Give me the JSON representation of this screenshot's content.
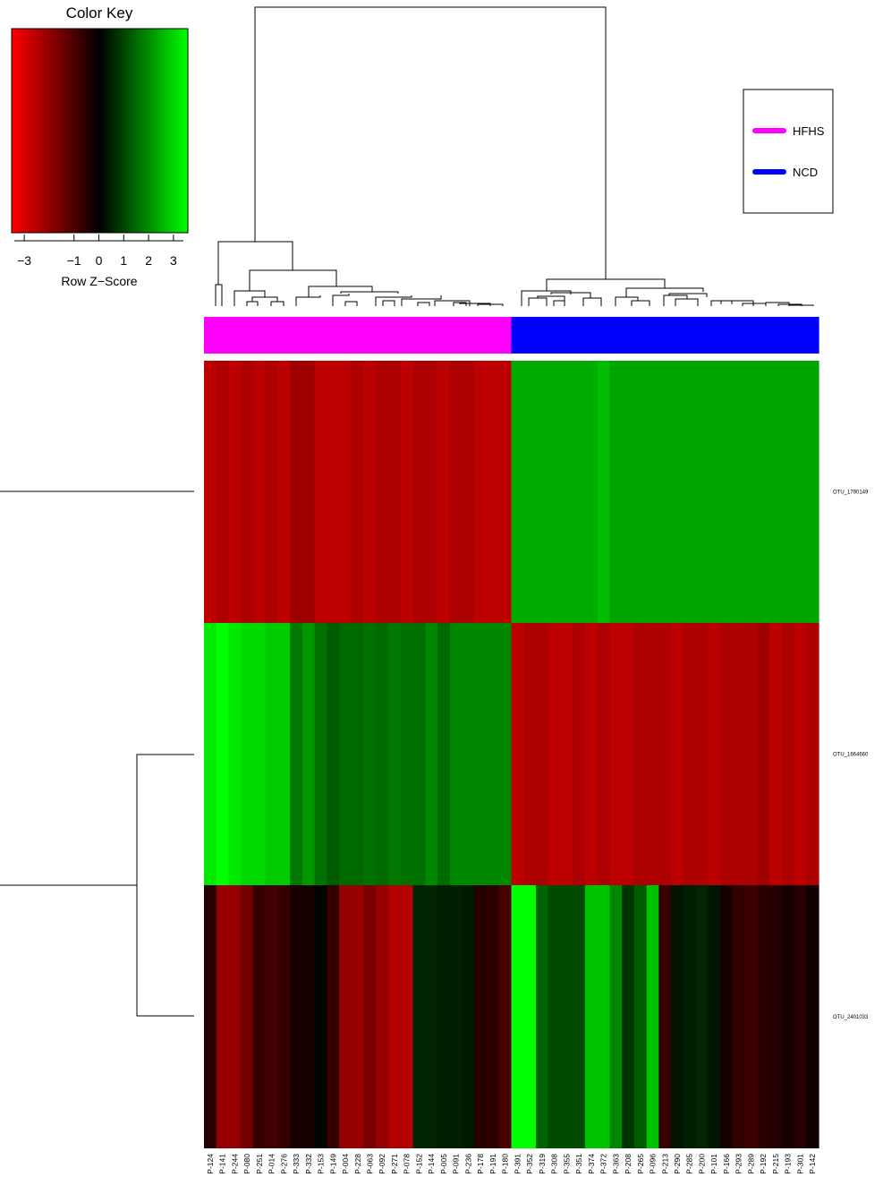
{
  "chart_data": {
    "type": "heatmap",
    "color_key": {
      "title": "Color Key",
      "xlabel": "Row Z−Score",
      "ticks": [
        "−3",
        "−1",
        "0",
        "1",
        "2",
        "3"
      ],
      "range": [
        -3.4,
        3.4
      ],
      "low_color": "#ff0000",
      "mid_color": "#000000",
      "high_color": "#00ff00"
    },
    "legend": {
      "position": "top-right",
      "entries": [
        {
          "label": "HFHS",
          "color": "#ff00ff"
        },
        {
          "label": "NCD",
          "color": "#0000ff"
        }
      ]
    },
    "columns": [
      "P-124",
      "P-141",
      "P-244",
      "P-080",
      "P-251",
      "P-014",
      "P-276",
      "P-333",
      "P-332",
      "P-153",
      "P-149",
      "P-004",
      "P-228",
      "P-063",
      "P-092",
      "P-271",
      "P-078",
      "P-152",
      "P-144",
      "P-005",
      "P-091",
      "P-236",
      "P-178",
      "P-191",
      "P-180",
      "P-391",
      "P-352",
      "P-319",
      "P-308",
      "P-355",
      "P-351",
      "P-374",
      "P-372",
      "P-363",
      "P-208",
      "P-265",
      "P-096",
      "P-213",
      "P-290",
      "P-285",
      "P-200",
      "P-101",
      "P-166",
      "P-293",
      "P-289",
      "P-192",
      "P-215",
      "P-193",
      "P-301",
      "P-142"
    ],
    "column_groups": [
      "HFHS",
      "HFHS",
      "HFHS",
      "HFHS",
      "HFHS",
      "HFHS",
      "HFHS",
      "HFHS",
      "HFHS",
      "HFHS",
      "HFHS",
      "HFHS",
      "HFHS",
      "HFHS",
      "HFHS",
      "HFHS",
      "HFHS",
      "HFHS",
      "HFHS",
      "HFHS",
      "HFHS",
      "HFHS",
      "HFHS",
      "HFHS",
      "HFHS",
      "NCD",
      "NCD",
      "NCD",
      "NCD",
      "NCD",
      "NCD",
      "NCD",
      "NCD",
      "NCD",
      "NCD",
      "NCD",
      "NCD",
      "NCD",
      "NCD",
      "NCD",
      "NCD",
      "NCD",
      "NCD",
      "NCD",
      "NCD",
      "NCD",
      "NCD",
      "NCD",
      "NCD",
      "NCD"
    ],
    "rows": [
      "OTU_1790149",
      "OTU_1664660",
      "OTU_2401033"
    ],
    "values": [
      [
        -2.5,
        -2.3,
        -2.5,
        -2.3,
        -2.5,
        -2.3,
        -2.5,
        -2.1,
        -2.1,
        -2.5,
        -2.5,
        -2.5,
        -2.3,
        -2.5,
        -2.3,
        -2.3,
        -2.5,
        -2.3,
        -2.3,
        -2.5,
        -2.3,
        -2.3,
        -2.5,
        -2.5,
        -2.5,
        2.3,
        2.3,
        2.3,
        2.3,
        2.3,
        2.3,
        2.3,
        2.5,
        2.2,
        2.2,
        2.2,
        2.2,
        2.2,
        2.2,
        2.2,
        2.2,
        2.2,
        2.2,
        2.2,
        2.2,
        2.2,
        2.2,
        2.2,
        2.2,
        2.2
      ],
      [
        3.1,
        3.6,
        3.1,
        2.9,
        2.9,
        2.7,
        2.7,
        1.6,
        2.0,
        1.5,
        1.2,
        1.4,
        1.4,
        1.5,
        1.4,
        1.6,
        1.5,
        1.5,
        1.8,
        1.4,
        1.8,
        1.8,
        1.8,
        1.8,
        1.8,
        -2.5,
        -2.3,
        -2.3,
        -2.5,
        -2.5,
        -2.3,
        -2.5,
        -2.3,
        -2.5,
        -2.5,
        -2.3,
        -2.3,
        -2.3,
        -2.5,
        -2.3,
        -2.3,
        -2.5,
        -2.3,
        -2.3,
        -2.3,
        -2.1,
        -2.5,
        -2.3,
        -2.5,
        -2.3
      ],
      [
        -0.5,
        -2.0,
        -2.0,
        -1.5,
        -0.7,
        -0.9,
        -0.7,
        -0.3,
        -0.3,
        0.05,
        -0.7,
        -2.0,
        -2.0,
        -1.6,
        -2.0,
        -2.4,
        -2.4,
        0.5,
        0.5,
        0.4,
        0.4,
        0.35,
        -0.5,
        -0.6,
        -1.0,
        4.2,
        3.6,
        1.3,
        1.0,
        1.0,
        1.0,
        2.6,
        2.6,
        1.8,
        0.7,
        1.2,
        2.6,
        -0.7,
        0.3,
        0.4,
        0.5,
        0.3,
        -0.3,
        -0.7,
        -0.8,
        -0.6,
        -0.5,
        -0.3,
        -0.5,
        -0.2
      ]
    ]
  }
}
